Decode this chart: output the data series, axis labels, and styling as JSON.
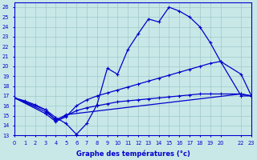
{
  "xlabel": "Graphe des températures (°c)",
  "background_color": "#c8e8e8",
  "line_color": "#0000cc",
  "grid_color": "#a0c8c8",
  "xlim": [
    0,
    23
  ],
  "ylim": [
    13,
    26.5
  ],
  "yticks": [
    13,
    14,
    15,
    16,
    17,
    18,
    19,
    20,
    21,
    22,
    23,
    24,
    25,
    26
  ],
  "xticks": [
    0,
    1,
    2,
    3,
    4,
    5,
    6,
    7,
    8,
    9,
    10,
    11,
    12,
    13,
    14,
    15,
    16,
    17,
    18,
    19,
    20,
    22,
    23
  ],
  "line1_x": [
    0,
    1,
    2,
    3,
    4,
    5,
    6,
    7,
    8,
    9,
    10,
    11,
    12,
    13,
    14,
    15,
    16,
    17,
    18,
    19,
    20,
    22,
    23
  ],
  "line1_y": [
    16.8,
    16.5,
    16.1,
    15.6,
    14.8,
    14.2,
    13.1,
    14.2,
    16.1,
    19.8,
    19.2,
    21.7,
    23.3,
    24.8,
    24.5,
    26.0,
    25.6,
    25.0,
    24.0,
    22.4,
    20.5,
    19.2,
    17.0
  ],
  "line2_x": [
    0,
    3,
    4,
    5,
    6,
    7,
    8,
    9,
    10,
    11,
    12,
    13,
    14,
    15,
    16,
    17,
    18,
    19,
    20,
    22,
    23
  ],
  "line2_y": [
    16.8,
    15.2,
    14.4,
    14.9,
    16.0,
    16.6,
    17.0,
    17.3,
    17.6,
    17.9,
    18.2,
    18.5,
    18.8,
    19.1,
    19.4,
    19.7,
    20.0,
    20.3,
    20.5,
    17.0,
    17.0
  ],
  "line3_x": [
    0,
    3,
    4,
    5,
    22,
    23
  ],
  "line3_y": [
    16.8,
    15.6,
    14.5,
    15.1,
    17.2,
    17.0
  ],
  "line4_x": [
    0,
    3,
    4,
    5,
    6,
    7,
    8,
    9,
    10,
    11,
    12,
    13,
    14,
    15,
    16,
    17,
    18,
    19,
    20,
    22,
    23
  ],
  "line4_y": [
    16.8,
    15.4,
    14.6,
    15.0,
    15.5,
    15.8,
    16.0,
    16.2,
    16.4,
    16.5,
    16.6,
    16.7,
    16.8,
    16.9,
    17.0,
    17.1,
    17.2,
    17.2,
    17.2,
    17.2,
    17.0
  ]
}
